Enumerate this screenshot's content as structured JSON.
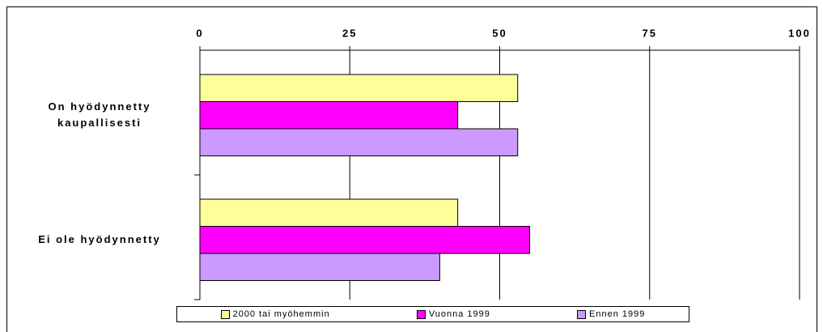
{
  "chart_data": {
    "type": "bar",
    "orientation": "horizontal",
    "categories": [
      "On hyödynnetty kaupallisesti",
      "Ei ole hyödynnetty"
    ],
    "series": [
      {
        "name": "2000 tai myöhemmin",
        "color": "#ffff99",
        "values": [
          53,
          43
        ]
      },
      {
        "name": "Vuonna 1999",
        "color": "#ff00ff",
        "values": [
          43,
          55
        ]
      },
      {
        "name": "Ennen 1999",
        "color": "#cc99ff",
        "values": [
          53,
          40
        ]
      }
    ],
    "xlim": [
      0,
      100
    ],
    "xticks": [
      0,
      25,
      50,
      75,
      100
    ],
    "grid": true,
    "legend": "bottom"
  }
}
